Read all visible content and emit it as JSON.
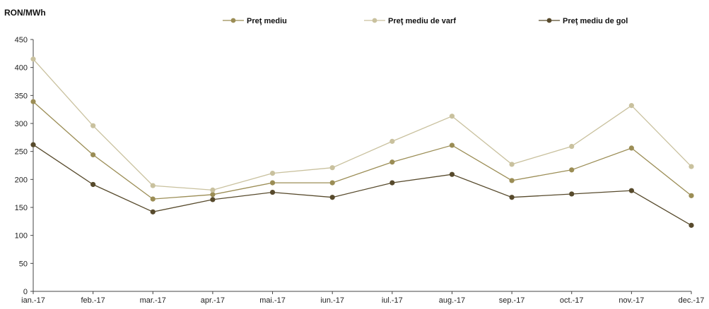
{
  "chart_data": {
    "type": "line",
    "title": "",
    "xlabel": "",
    "ylabel": "RON/MWh",
    "categories": [
      "ian.-17",
      "feb.-17",
      "mar.-17",
      "apr.-17",
      "mai.-17",
      "iun.-17",
      "iul.-17",
      "aug.-17",
      "sep.-17",
      "oct.-17",
      "nov.-17",
      "dec.-17"
    ],
    "ylim": [
      0,
      450
    ],
    "yticks": [
      0,
      50,
      100,
      150,
      200,
      250,
      300,
      350,
      400,
      450
    ],
    "grid": false,
    "legend_position": "top",
    "series": [
      {
        "name": "Preţ mediu",
        "color": "#9b8d55",
        "values": [
          339,
          244,
          165,
          173,
          194,
          194,
          231,
          261,
          198,
          217,
          256,
          171
        ]
      },
      {
        "name": "Preţ mediu de varf",
        "color": "#c9c19e",
        "values": [
          415,
          296,
          189,
          181,
          211,
          221,
          268,
          313,
          227,
          259,
          332,
          223
        ]
      },
      {
        "name": "Preţ mediu de gol",
        "color": "#574a2c",
        "values": [
          262,
          191,
          142,
          164,
          177,
          168,
          194,
          209,
          168,
          174,
          180,
          118
        ]
      }
    ]
  }
}
